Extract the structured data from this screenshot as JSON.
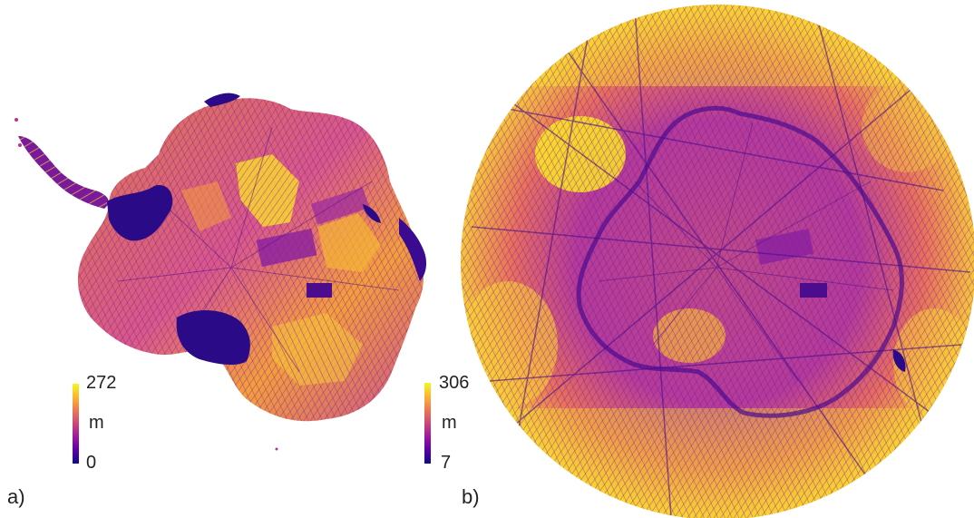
{
  "panels": [
    {
      "id": "a",
      "label": "a)",
      "colorbar": {
        "max": "272",
        "unit": "m",
        "min": "0"
      }
    },
    {
      "id": "b",
      "label": "b)",
      "colorbar": {
        "max": "306",
        "unit": "m",
        "min": "7"
      }
    }
  ],
  "colormap": {
    "name": "plasma",
    "stops": [
      "#0d0887",
      "#5c01a6",
      "#9c179e",
      "#cc4778",
      "#ed7953",
      "#fdb42f",
      "#f0f921"
    ]
  },
  "colors": {
    "low": "#2a0a86",
    "mid": "#b5338f",
    "high": "#fde725",
    "background": "#ffffff"
  }
}
